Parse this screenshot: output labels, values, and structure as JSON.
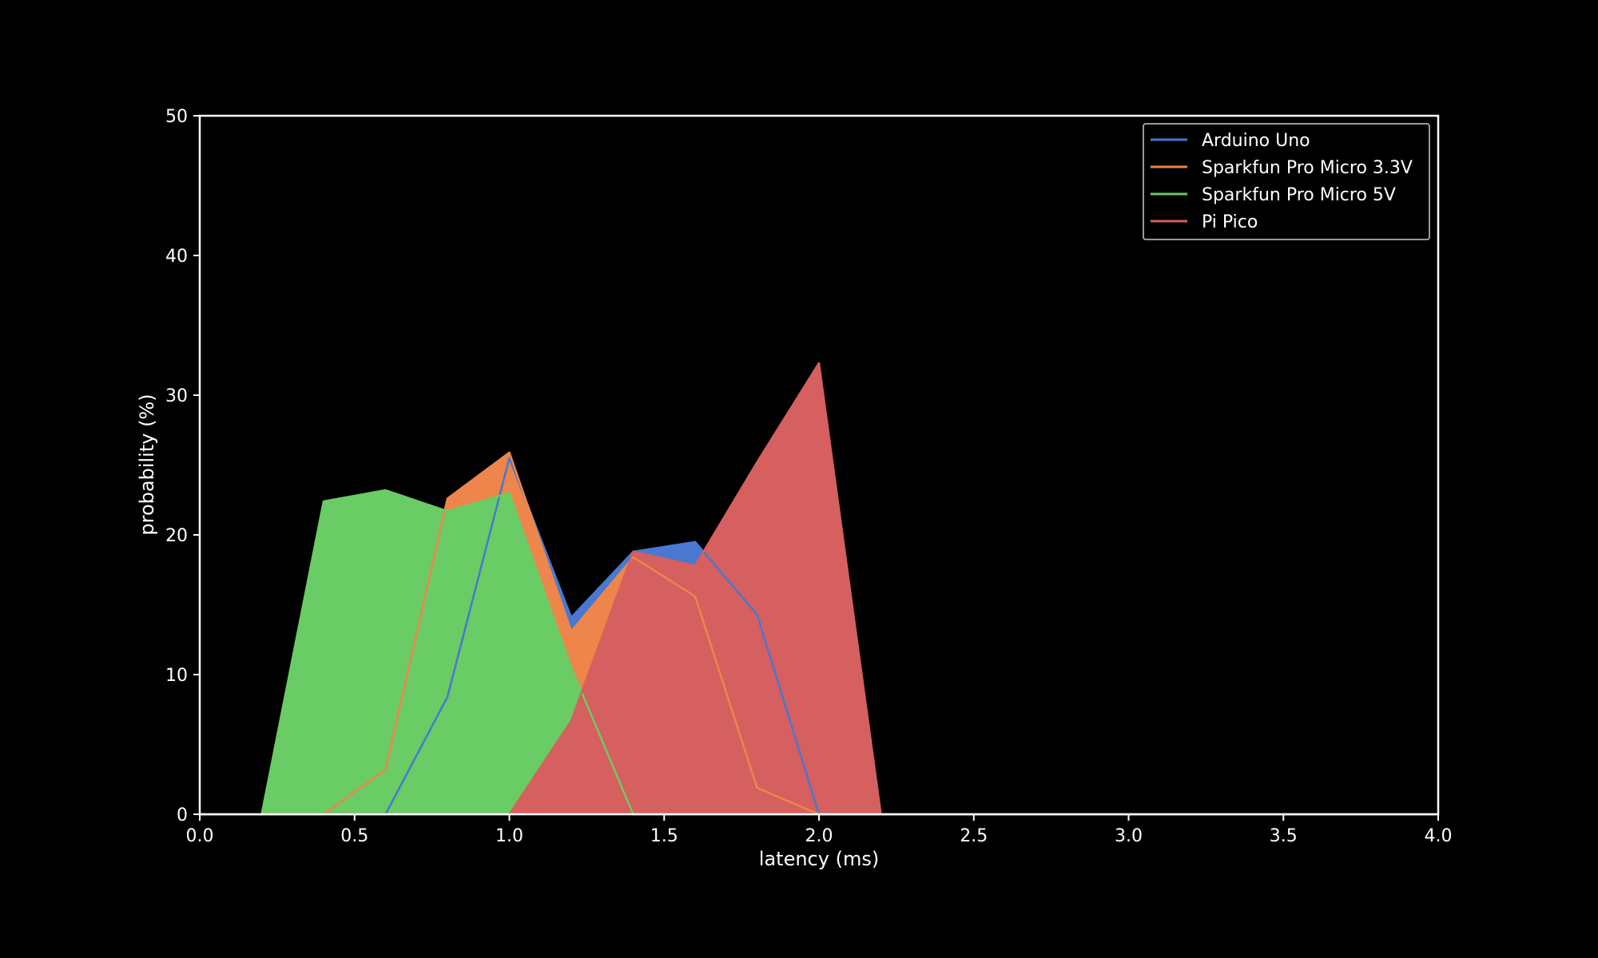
{
  "chart_data": {
    "type": "area",
    "title": "",
    "xlabel": "latency (ms)",
    "ylabel": "probability (%)",
    "xlim": [
      0,
      4
    ],
    "ylim": [
      0,
      50
    ],
    "xticks": [
      0.0,
      0.5,
      1.0,
      1.5,
      2.0,
      2.5,
      3.0,
      3.5,
      4.0
    ],
    "xtick_labels": [
      "0.0",
      "0.5",
      "1.0",
      "1.5",
      "2.0",
      "2.5",
      "3.0",
      "3.5",
      "4.0"
    ],
    "yticks": [
      0,
      10,
      20,
      30,
      40,
      50
    ],
    "ytick_labels": [
      "0",
      "10",
      "20",
      "30",
      "40",
      "50"
    ],
    "legend_position": "top-right",
    "background": "#000000",
    "series": [
      {
        "name": "Arduino Uno",
        "color": "#4878d0",
        "x": [
          0.0,
          0.2,
          0.4,
          0.6,
          0.8,
          1.0,
          1.2,
          1.4,
          1.6,
          1.8,
          2.0,
          2.2,
          2.4,
          2.6,
          2.8,
          3.0,
          3.2,
          3.4,
          3.6,
          3.8,
          4.0
        ],
        "y": [
          0,
          0,
          0,
          0,
          8.4,
          25.5,
          14.1,
          18.8,
          19.5,
          14.3,
          0,
          0,
          0,
          0,
          0,
          0,
          0,
          0,
          0,
          0,
          0
        ]
      },
      {
        "name": "Sparkfun Pro Micro 3.3V",
        "color": "#ee854a",
        "x": [
          0.0,
          0.2,
          0.4,
          0.6,
          0.8,
          1.0,
          1.2,
          1.4,
          1.6,
          1.8,
          2.0,
          2.2,
          2.4,
          2.6,
          2.8,
          3.0,
          3.2,
          3.4,
          3.6,
          3.8,
          4.0
        ],
        "y": [
          0,
          0,
          0,
          3.2,
          22.6,
          25.9,
          13.1,
          18.4,
          15.6,
          1.9,
          0,
          0,
          0,
          0,
          0,
          0,
          0,
          0,
          0,
          0,
          0
        ]
      },
      {
        "name": "Sparkfun Pro Micro 5V",
        "color": "#6acc64",
        "x": [
          0.0,
          0.2,
          0.4,
          0.6,
          0.8,
          1.0,
          1.2,
          1.4,
          1.6,
          1.8,
          2.0,
          2.2,
          2.4,
          2.6,
          2.8,
          3.0,
          3.2,
          3.4,
          3.6,
          3.8,
          4.0
        ],
        "y": [
          0,
          0,
          22.4,
          23.2,
          21.7,
          23.0,
          10.5,
          0,
          0,
          0,
          0,
          0,
          0,
          0,
          0,
          0,
          0,
          0,
          0,
          0,
          0
        ]
      },
      {
        "name": "Pi Pico",
        "color": "#d65f5f",
        "x": [
          0.0,
          0.2,
          0.4,
          0.6,
          0.8,
          1.0,
          1.2,
          1.4,
          1.6,
          1.8,
          2.0,
          2.2,
          2.4,
          2.6,
          2.8,
          3.0,
          3.2,
          3.4,
          3.6,
          3.8,
          4.0
        ],
        "y": [
          0,
          0,
          0,
          0,
          0,
          0,
          6.7,
          18.8,
          17.8,
          25.2,
          32.3,
          0,
          0,
          0,
          0,
          0,
          0,
          0,
          0,
          0,
          0
        ]
      }
    ]
  }
}
